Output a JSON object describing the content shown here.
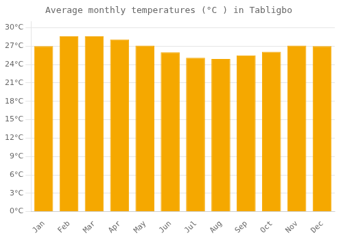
{
  "chart_data": {
    "type": "bar",
    "title": "Average monthly temperatures (°C ) in Tabligbo",
    "categories": [
      "Jan",
      "Feb",
      "Mar",
      "Apr",
      "May",
      "Jun",
      "Jul",
      "Aug",
      "Sep",
      "Oct",
      "Nov",
      "Dec"
    ],
    "values": [
      27.0,
      28.6,
      28.6,
      28.1,
      27.1,
      26.0,
      25.1,
      24.9,
      25.5,
      26.1,
      27.1,
      27.0
    ],
    "color": "#F5A800",
    "ylim": [
      0,
      31
    ],
    "yticks": [
      {
        "value": 0,
        "label": "0°C"
      },
      {
        "value": 3,
        "label": "3°C"
      },
      {
        "value": 6,
        "label": "6°C"
      },
      {
        "value": 9,
        "label": "9°C"
      },
      {
        "value": 12,
        "label": "12°C"
      },
      {
        "value": 15,
        "label": "15°C"
      },
      {
        "value": 18,
        "label": "18°C"
      },
      {
        "value": 21,
        "label": "21°C"
      },
      {
        "value": 24,
        "label": "24°C"
      },
      {
        "value": 27,
        "label": "27°C"
      },
      {
        "value": 30,
        "label": "30°C"
      }
    ],
    "grid": true
  }
}
